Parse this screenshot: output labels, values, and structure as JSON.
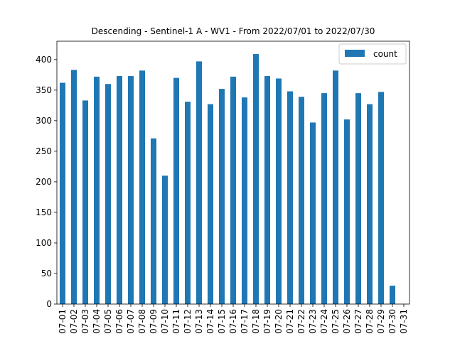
{
  "chart_data": {
    "type": "bar",
    "title": "Descending - Sentinel-1 A - WV1 - From 2022/07/01 to 2022/07/30",
    "xlabel": "",
    "ylabel": "",
    "categories": [
      "07-01",
      "07-02",
      "07-03",
      "07-04",
      "07-05",
      "07-06",
      "07-07",
      "07-08",
      "07-09",
      "07-10",
      "07-11",
      "07-12",
      "07-13",
      "07-14",
      "07-15",
      "07-16",
      "07-17",
      "07-18",
      "07-19",
      "07-20",
      "07-21",
      "07-22",
      "07-23",
      "07-24",
      "07-25",
      "07-26",
      "07-27",
      "07-28",
      "07-29",
      "07-30",
      "07-31"
    ],
    "series": [
      {
        "name": "count",
        "color": "#1f77b4",
        "values": [
          362,
          383,
          333,
          372,
          360,
          373,
          373,
          382,
          271,
          210,
          370,
          331,
          397,
          327,
          352,
          372,
          338,
          409,
          373,
          369,
          348,
          339,
          297,
          345,
          382,
          302,
          345,
          327,
          347,
          30,
          0
        ]
      }
    ],
    "ylim": [
      0,
      430
    ],
    "yticks": [
      0,
      50,
      100,
      150,
      200,
      250,
      300,
      350,
      400
    ],
    "grid": false,
    "legend": "top-right"
  }
}
